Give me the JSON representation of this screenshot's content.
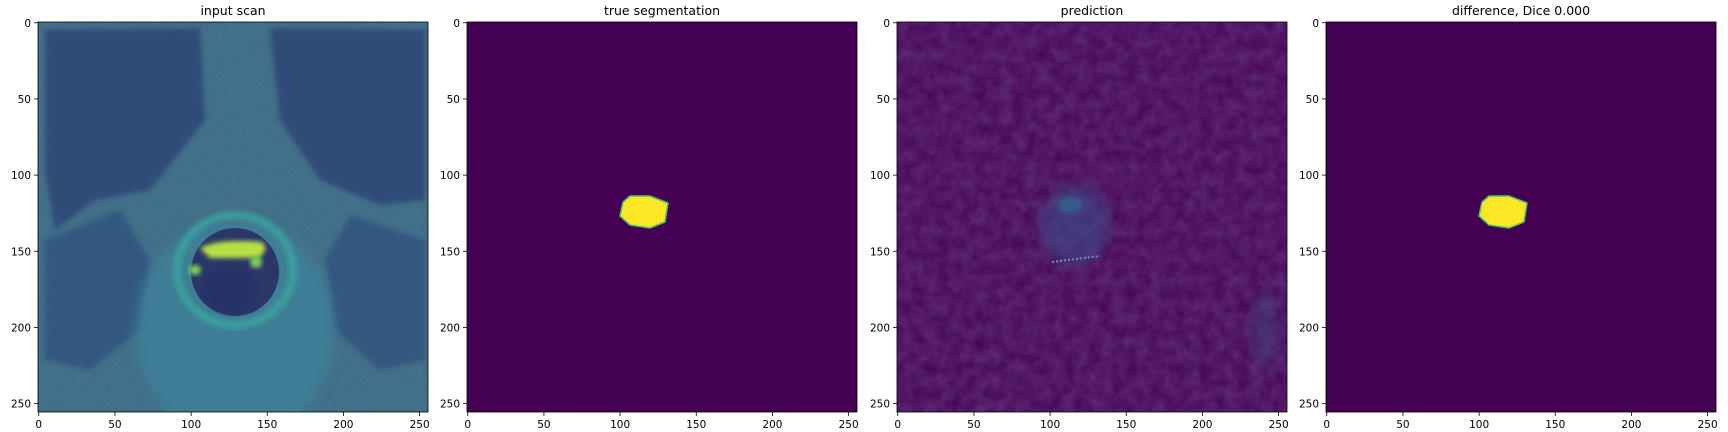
{
  "panels": [
    {
      "title": "input scan",
      "kind": "mri",
      "xticks": [
        "0",
        "50",
        "100",
        "150",
        "200",
        "250"
      ],
      "yticks": [
        "0",
        "50",
        "100",
        "150",
        "200",
        "250"
      ]
    },
    {
      "title": "true segmentation",
      "kind": "mask",
      "xticks": [
        "0",
        "50",
        "100",
        "150",
        "200",
        "250"
      ],
      "yticks": [
        "0",
        "50",
        "100",
        "150",
        "200",
        "250"
      ]
    },
    {
      "title": "prediction",
      "kind": "prediction",
      "xticks": [
        "0",
        "50",
        "100",
        "150",
        "200",
        "250"
      ],
      "yticks": [
        "0",
        "50",
        "100",
        "150",
        "200",
        "250"
      ]
    },
    {
      "title": "difference, Dice 0.000",
      "kind": "mask",
      "xticks": [
        "0",
        "50",
        "100",
        "150",
        "200",
        "250"
      ],
      "yticks": [
        "0",
        "50",
        "100",
        "150",
        "200",
        "250"
      ]
    }
  ],
  "colormap": {
    "low": "#440154",
    "mid": "#21918c",
    "high": "#fde725"
  }
}
